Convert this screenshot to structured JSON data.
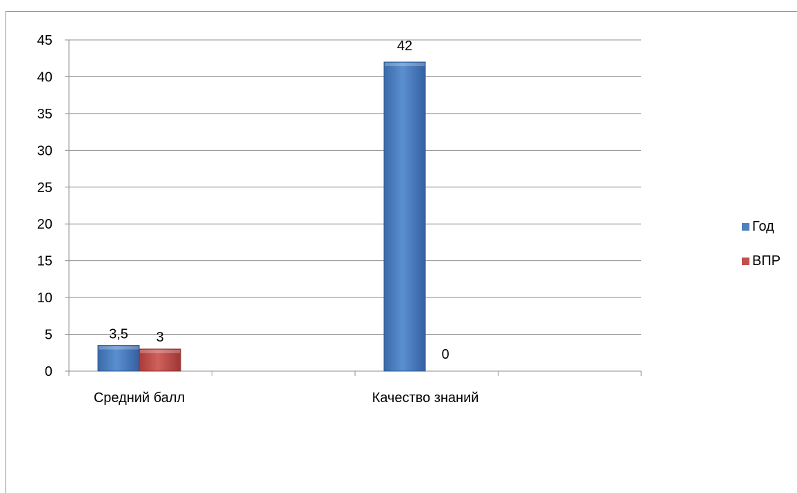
{
  "chart_data": {
    "type": "bar",
    "categories": [
      "Средний балл",
      "Качество знаний"
    ],
    "series": [
      {
        "name": "Год",
        "values": [
          3.5,
          42
        ],
        "labels": [
          "3,5",
          "42"
        ],
        "color": "#4f81bd"
      },
      {
        "name": "ВПР",
        "values": [
          3,
          0
        ],
        "labels": [
          "3",
          "0"
        ],
        "color": "#c0504d"
      }
    ],
    "ylim": [
      0,
      45
    ],
    "yticks": [
      0,
      5,
      10,
      15,
      20,
      25,
      30,
      35,
      40,
      45
    ],
    "grid": true,
    "legend_position": "right"
  }
}
